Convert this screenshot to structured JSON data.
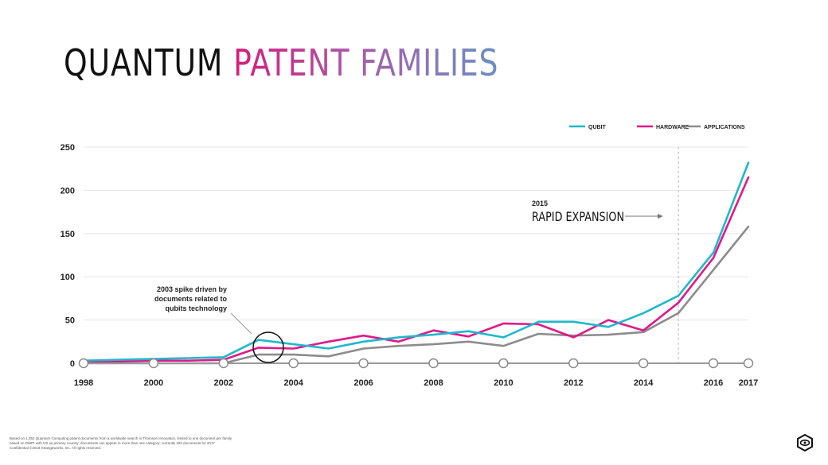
{
  "title": {
    "part1": "QUANTUM",
    "part2": "PATENT FAMILIES"
  },
  "footnote": {
    "lines": [
      "Based on 1,352 Quantum Computing patent documents from a worldwide search in Thomson Innovation, limited to one document per family",
      "based on DWPI with US as primary country; documents can appear in more than one category; currently 293 documents for 2017",
      "Confidential ©2018 Strangeworks, Inc. All rights reserved."
    ]
  },
  "chart_data": {
    "type": "line",
    "x_ticks": [
      "1998",
      "2000",
      "2002",
      "2004",
      "2006",
      "2008",
      "2010",
      "2012",
      "2014",
      "2016",
      "2017"
    ],
    "ylim": [
      0,
      250
    ],
    "y_ticks": [
      "0",
      "50",
      "100",
      "150",
      "200",
      "250"
    ],
    "grid": true,
    "legend_position": "top-right",
    "x": [
      1998,
      1999,
      2000,
      2001,
      2002,
      2003,
      2004,
      2005,
      2006,
      2007,
      2008,
      2009,
      2010,
      2011,
      2012,
      2013,
      2014,
      2015,
      2016,
      2017
    ],
    "series": [
      {
        "name": "QUBIT",
        "color": "#1fb8cc",
        "values": [
          3,
          4,
          5,
          6,
          7,
          27,
          22,
          17,
          25,
          30,
          33,
          37,
          30,
          48,
          48,
          42,
          58,
          78,
          128,
          232
        ]
      },
      {
        "name": "HARDWARE",
        "color": "#e0198a",
        "values": [
          2,
          2,
          3,
          3,
          4,
          18,
          17,
          25,
          32,
          25,
          38,
          31,
          46,
          45,
          30,
          50,
          38,
          70,
          122,
          215
        ]
      },
      {
        "name": "APPLICATIONS",
        "color": "#8c8c8c",
        "values": [
          0,
          0,
          0,
          0,
          0,
          10,
          10,
          8,
          17,
          20,
          22,
          25,
          20,
          34,
          32,
          33,
          36,
          58,
          108,
          158
        ]
      }
    ],
    "annotations": [
      {
        "text_lines": [
          "2003 spike driven by",
          "documents related to",
          "qubits technology"
        ],
        "x": 2003,
        "y": 23
      },
      {
        "year_label": "2015",
        "label": "RAPID EXPANSION",
        "x": 2015
      }
    ]
  }
}
